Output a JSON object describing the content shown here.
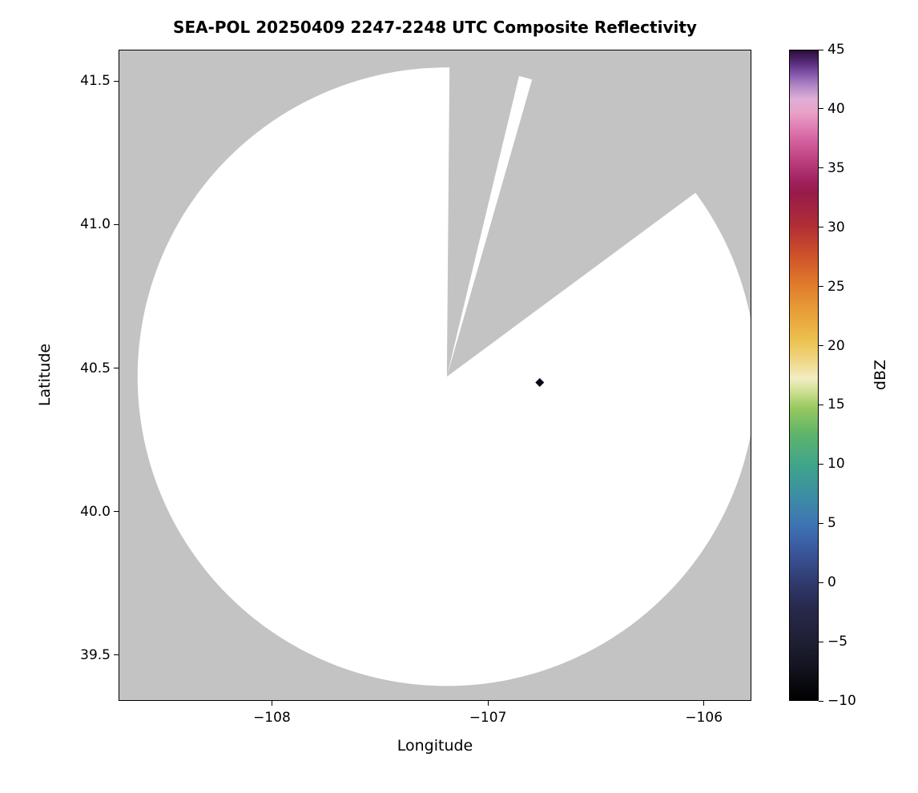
{
  "title": "SEA-POL 20250409 2247-2248 UTC Composite Reflectivity",
  "x_axis_label": "Longitude",
  "y_axis_label": "Latitude",
  "colorbar_label": "dBZ",
  "colors": {
    "figure_background": "#ffffff",
    "out_of_range_gray": "#c3c3c3",
    "radar_coverage_white": "#ffffff",
    "echo_marker": "#0d0618",
    "axis": "#000000"
  },
  "chart_data": {
    "type": "heatmap",
    "title": "SEA-POL 20250409 2247-2248 UTC Composite Reflectivity",
    "xlabel": "Longitude",
    "ylabel": "Latitude",
    "xlim": [
      -108.71,
      -105.78
    ],
    "ylim": [
      39.34,
      41.61
    ],
    "grid": false,
    "x_ticks": [
      {
        "value": -108,
        "label": "−108"
      },
      {
        "value": -107,
        "label": "−107"
      },
      {
        "value": -106,
        "label": "−106"
      }
    ],
    "y_ticks": [
      {
        "value": 41.5,
        "label": "41.5"
      },
      {
        "value": 41.0,
        "label": "41.0"
      },
      {
        "value": 40.5,
        "label": "40.5"
      },
      {
        "value": 40.0,
        "label": "40.0"
      },
      {
        "value": 39.5,
        "label": "39.5"
      }
    ],
    "radar": {
      "name": "SEA-POL",
      "center_lon": -107.19,
      "center_lat": 40.47,
      "range_radius_deg_lat": 1.078,
      "missing_data_sectors_azimuth_deg": [
        [
          0.5,
          13.5
        ],
        [
          16,
          53.5
        ]
      ]
    },
    "echoes": [
      {
        "lon": -106.76,
        "lat": 40.45,
        "dbz_approx": -10
      }
    ],
    "colorbar": {
      "label": "dBZ",
      "min": -10,
      "max": 45,
      "ticks": [
        {
          "value": 45,
          "label": "45"
        },
        {
          "value": 40,
          "label": "40"
        },
        {
          "value": 35,
          "label": "35"
        },
        {
          "value": 30,
          "label": "30"
        },
        {
          "value": 25,
          "label": "25"
        },
        {
          "value": 20,
          "label": "20"
        },
        {
          "value": 15,
          "label": "15"
        },
        {
          "value": 10,
          "label": "10"
        },
        {
          "value": 5,
          "label": "5"
        },
        {
          "value": 0,
          "label": "0"
        },
        {
          "value": -5,
          "label": "−5"
        },
        {
          "value": -10,
          "label": "−10"
        }
      ],
      "colormap_stops": [
        [
          0.0,
          "#000000"
        ],
        [
          0.05,
          "#131320"
        ],
        [
          0.09,
          "#1e1f33"
        ],
        [
          0.14,
          "#28294b"
        ],
        [
          0.18,
          "#2f3a6d"
        ],
        [
          0.23,
          "#3a579c"
        ],
        [
          0.27,
          "#3e74b3"
        ],
        [
          0.31,
          "#3d8ba6"
        ],
        [
          0.36,
          "#3fa48b"
        ],
        [
          0.41,
          "#5fb46a"
        ],
        [
          0.45,
          "#97c95e"
        ],
        [
          0.475,
          "#cfdf93"
        ],
        [
          0.495,
          "#f2edc5"
        ],
        [
          0.52,
          "#efd98a"
        ],
        [
          0.555,
          "#ecc04c"
        ],
        [
          0.6,
          "#e79d38"
        ],
        [
          0.645,
          "#df762b"
        ],
        [
          0.69,
          "#cc4d2b"
        ],
        [
          0.73,
          "#b02e35"
        ],
        [
          0.78,
          "#971b49"
        ],
        [
          0.8,
          "#a12260"
        ],
        [
          0.83,
          "#bc3f7f"
        ],
        [
          0.86,
          "#d35f9e"
        ],
        [
          0.885,
          "#e183b6"
        ],
        [
          0.905,
          "#e9a2c8"
        ],
        [
          0.925,
          "#dfaed6"
        ],
        [
          0.945,
          "#b289c6"
        ],
        [
          0.965,
          "#8153a8"
        ],
        [
          0.98,
          "#5b2d7e"
        ],
        [
          1.0,
          "#2b0d3a"
        ]
      ]
    }
  }
}
